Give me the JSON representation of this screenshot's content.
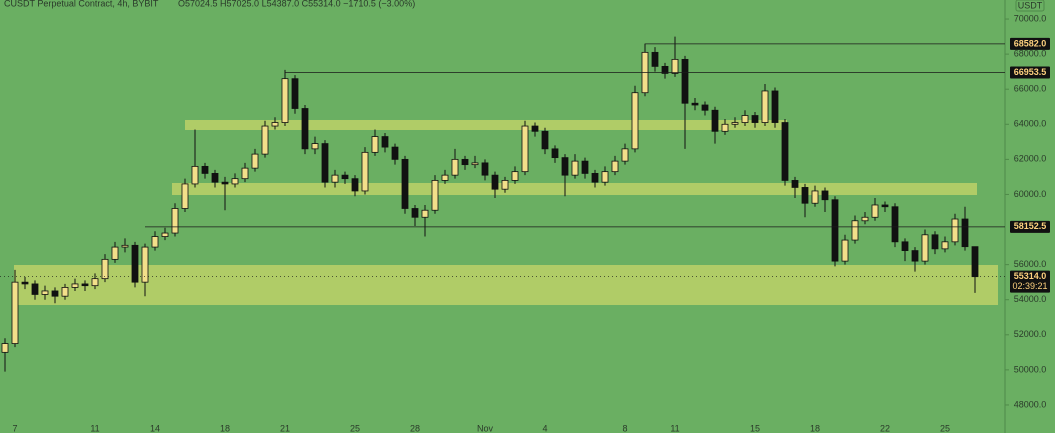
{
  "chart_data": {
    "type": "candlestick",
    "title": "CUSDT Perpetual Contract, 4h, BYBIT",
    "subtitle": "O57024.5  H57025.0  L54387.0  C55314.0  −1710.5 (−3.00%)",
    "currency": "USDT",
    "up_color": "#f2df8a",
    "down_color": "#111111",
    "background": "#6aaf62",
    "ylim": [
      47200,
      70800
    ],
    "yticks": [
      {
        "value": 48000,
        "label": "48000.0"
      },
      {
        "value": 50000,
        "label": "50000.0"
      },
      {
        "value": 52000,
        "label": "52000.0"
      },
      {
        "value": 54000,
        "label": "54000.0"
      },
      {
        "value": 56000,
        "label": "56000.0"
      },
      {
        "value": 60000,
        "label": "60000.0"
      },
      {
        "value": 62000,
        "label": "62000.0"
      },
      {
        "value": 64000,
        "label": "64000.0"
      },
      {
        "value": 66000,
        "label": "66000.0"
      },
      {
        "value": 68000,
        "label": "68000.0"
      },
      {
        "value": 70000,
        "label": "70000.0"
      }
    ],
    "levels": [
      {
        "value": 68582,
        "label": "68582.0"
      },
      {
        "value": 66953.5,
        "label": "66953.5"
      },
      {
        "value": 58152.5,
        "label": "58152.5"
      }
    ],
    "last_price": {
      "value": 55314,
      "label": "55314.0",
      "countdown": "02:39:21"
    },
    "categories": [
      null,
      "7",
      null,
      null,
      null,
      null,
      null,
      null,
      null,
      "11",
      null,
      null,
      null,
      null,
      null,
      "14",
      null,
      null,
      null,
      null,
      null,
      null,
      "18",
      null,
      null,
      null,
      null,
      null,
      "21",
      null,
      null,
      null,
      null,
      null,
      null,
      "25",
      null,
      null,
      null,
      null,
      null,
      "28",
      null,
      null,
      null,
      null,
      null,
      null,
      "Nov",
      null,
      null,
      null,
      null,
      null,
      "4",
      null,
      null,
      null,
      null,
      null,
      null,
      null,
      "8",
      null,
      null,
      null,
      null,
      "11",
      null,
      null,
      null,
      null,
      null,
      null,
      null,
      "15",
      null,
      null,
      null,
      null,
      null,
      "18",
      null,
      null,
      null,
      null,
      null,
      null,
      "22",
      null,
      null,
      null,
      null,
      null,
      "25",
      null,
      null,
      null
    ],
    "open": [
      51000,
      51500,
      55000,
      54900,
      54300,
      54500,
      54200,
      54700,
      54900,
      54800,
      55200,
      56300,
      57000,
      57100,
      55000,
      57000,
      57600,
      57800,
      59200,
      60600,
      61600,
      61200,
      60700,
      60600,
      60900,
      61500,
      62300,
      63900,
      64100,
      66600,
      64900,
      62600,
      62900,
      60700,
      61100,
      60900,
      60200,
      62400,
      63300,
      62700,
      62000,
      59200,
      58700,
      59100,
      60800,
      61100,
      62000,
      61700,
      61800,
      61100,
      60300,
      60800,
      61300,
      63900,
      63600,
      62600,
      62100,
      61100,
      61900,
      61200,
      60700,
      61300,
      61900,
      62600,
      65800,
      68100,
      67300,
      66900,
      67700,
      65200,
      65100,
      64800,
      63600,
      64000,
      64100,
      64500,
      64100,
      65900,
      64100,
      60800,
      60400,
      59500,
      60200,
      59700,
      56200,
      57400,
      58500,
      58700,
      59400,
      59300,
      57300,
      56800,
      56200,
      57700,
      56900,
      57300,
      58600,
      57024.5
    ],
    "high": [
      51800,
      55700,
      55300,
      55100,
      54800,
      54700,
      54900,
      55200,
      55100,
      55500,
      56600,
      57300,
      57500,
      57300,
      57200,
      57900,
      58100,
      59500,
      60900,
      63700,
      61800,
      61400,
      61000,
      61200,
      61800,
      62600,
      64200,
      64400,
      67100,
      66800,
      65100,
      63300,
      63100,
      61400,
      61300,
      61100,
      62700,
      63700,
      63500,
      62900,
      62200,
      59400,
      59400,
      61100,
      61400,
      62600,
      62200,
      62200,
      62000,
      61300,
      61000,
      61600,
      64200,
      64100,
      63800,
      62800,
      62300,
      62300,
      62100,
      61400,
      61600,
      62200,
      62900,
      66200,
      68600,
      68400,
      67500,
      69000,
      67900,
      65500,
      65300,
      65000,
      64300,
      64400,
      64800,
      64700,
      66300,
      66100,
      64300,
      61000,
      60600,
      60500,
      60400,
      59900,
      57700,
      58800,
      59000,
      59800,
      59600,
      59500,
      57500,
      57000,
      58000,
      57900,
      57600,
      58900,
      59300,
      57025
    ],
    "low": [
      49900,
      51300,
      54600,
      54000,
      54000,
      53800,
      54000,
      54500,
      54500,
      54600,
      55000,
      56100,
      56700,
      54700,
      54200,
      56800,
      57400,
      57600,
      59000,
      60400,
      60900,
      60400,
      59100,
      60400,
      60700,
      61300,
      62100,
      63700,
      63900,
      64600,
      62300,
      62300,
      60400,
      60400,
      60600,
      59900,
      60000,
      62200,
      62400,
      61700,
      58900,
      58200,
      57600,
      58900,
      60600,
      60900,
      61400,
      61500,
      60800,
      59800,
      60100,
      60600,
      61100,
      63300,
      62300,
      61800,
      59900,
      60900,
      60900,
      60400,
      60500,
      61100,
      61700,
      62400,
      65600,
      67000,
      66600,
      66700,
      62600,
      64800,
      64500,
      62900,
      63400,
      63800,
      63900,
      63800,
      63900,
      63800,
      60500,
      59800,
      58700,
      59300,
      59000,
      55900,
      56000,
      57200,
      58300,
      58500,
      59000,
      57000,
      56200,
      55600,
      56000,
      56600,
      56700,
      57100,
      56800,
      54387
    ],
    "close": [
      51500,
      55000,
      54900,
      54300,
      54500,
      54200,
      54700,
      54900,
      54800,
      55200,
      56300,
      57000,
      57100,
      55000,
      57000,
      57600,
      57800,
      59200,
      60600,
      61600,
      61200,
      60700,
      60600,
      60900,
      61500,
      62300,
      63900,
      64100,
      66600,
      64900,
      62600,
      62900,
      60700,
      61100,
      60900,
      60200,
      62400,
      63300,
      62700,
      62000,
      59200,
      58700,
      59100,
      60800,
      61100,
      62000,
      61700,
      61800,
      61100,
      60300,
      60800,
      61300,
      63900,
      63600,
      62600,
      62100,
      61100,
      61900,
      61200,
      60700,
      61300,
      61900,
      62600,
      65800,
      68100,
      67300,
      66900,
      67700,
      65200,
      65100,
      64800,
      63600,
      64000,
      64100,
      64500,
      64100,
      65900,
      64100,
      60800,
      60400,
      59500,
      60200,
      59700,
      56200,
      57400,
      58500,
      58700,
      59400,
      59300,
      57300,
      56800,
      56200,
      57700,
      56900,
      57300,
      58600,
      57024.5,
      55314
    ]
  }
}
